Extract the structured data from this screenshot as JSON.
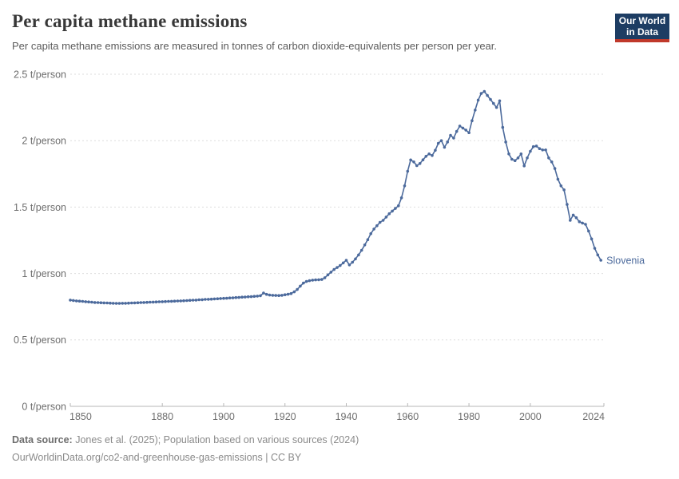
{
  "header": {
    "title": "Per capita methane emissions",
    "subtitle": "Per capita methane emissions are measured in tonnes of carbon dioxide-equivalents per person per year.",
    "logo": {
      "line1": "Our World",
      "line2": "in Data"
    }
  },
  "footer": {
    "source_label": "Data source:",
    "source_text": " Jones et al. (2025); Population based on various sources (2024)",
    "note_text": "OurWorldinData.org/co2-and-greenhouse-gas-emissions | CC BY"
  },
  "colors": {
    "line": "#4C6A9C",
    "grid": "#dedede",
    "axis": "#b7b7b7",
    "tick_text": "#6e6e6e",
    "logo_bg": "#1d3d63",
    "logo_bar": "#c0392b"
  },
  "chart_data": {
    "type": "line",
    "title": "Per capita methane emissions",
    "unit": "t/person",
    "grid": true,
    "legend_position": "end-of-line",
    "entity_label": "Slovenia",
    "x": {
      "min": 1850,
      "max": 2024,
      "ticks": [
        1850,
        1880,
        1900,
        1920,
        1940,
        1960,
        1980,
        2000,
        2024
      ]
    },
    "y": {
      "min": 0,
      "max": 2.5,
      "ticks": [
        0,
        0.5,
        1,
        1.5,
        2,
        2.5
      ],
      "tick_labels": [
        "0 t/person",
        "0.5 t/person",
        "1 t/person",
        "1.5 t/person",
        "2 t/person",
        "2.5 t/person"
      ]
    },
    "series": [
      {
        "name": "Slovenia",
        "color": "#4C6A9C",
        "start_year": 1850,
        "end_year": 2023,
        "values": [
          0.8,
          0.797,
          0.794,
          0.792,
          0.79,
          0.788,
          0.786,
          0.784,
          0.782,
          0.781,
          0.78,
          0.779,
          0.778,
          0.777,
          0.776,
          0.775,
          0.775,
          0.776,
          0.776,
          0.777,
          0.778,
          0.779,
          0.78,
          0.781,
          0.782,
          0.783,
          0.784,
          0.785,
          0.786,
          0.787,
          0.788,
          0.789,
          0.79,
          0.791,
          0.792,
          0.793,
          0.794,
          0.795,
          0.796,
          0.798,
          0.799,
          0.8,
          0.802,
          0.803,
          0.805,
          0.806,
          0.807,
          0.809,
          0.81,
          0.812,
          0.813,
          0.814,
          0.816,
          0.817,
          0.819,
          0.82,
          0.822,
          0.823,
          0.825,
          0.826,
          0.828,
          0.83,
          0.833,
          0.853,
          0.843,
          0.838,
          0.836,
          0.835,
          0.834,
          0.836,
          0.84,
          0.844,
          0.849,
          0.862,
          0.88,
          0.905,
          0.928,
          0.94,
          0.946,
          0.95,
          0.952,
          0.953,
          0.955,
          0.968,
          0.99,
          1.01,
          1.03,
          1.045,
          1.06,
          1.08,
          1.1,
          1.065,
          1.085,
          1.11,
          1.14,
          1.175,
          1.215,
          1.255,
          1.3,
          1.335,
          1.36,
          1.385,
          1.4,
          1.425,
          1.45,
          1.47,
          1.49,
          1.51,
          1.57,
          1.66,
          1.77,
          1.855,
          1.84,
          1.812,
          1.828,
          1.856,
          1.882,
          1.9,
          1.888,
          1.928,
          1.98,
          2.0,
          1.95,
          1.99,
          2.04,
          2.02,
          2.07,
          2.11,
          2.095,
          2.08,
          2.06,
          2.15,
          2.23,
          2.305,
          2.355,
          2.37,
          2.34,
          2.31,
          2.28,
          2.25,
          2.3,
          2.1,
          1.99,
          1.9,
          1.86,
          1.85,
          1.87,
          1.9,
          1.81,
          1.87,
          1.92,
          1.955,
          1.96,
          1.94,
          1.93,
          1.93,
          1.87,
          1.84,
          1.79,
          1.71,
          1.66,
          1.63,
          1.52,
          1.4,
          1.44,
          1.42,
          1.39,
          1.38,
          1.37,
          1.32,
          1.26,
          1.19,
          1.14,
          1.1
        ]
      }
    ]
  }
}
